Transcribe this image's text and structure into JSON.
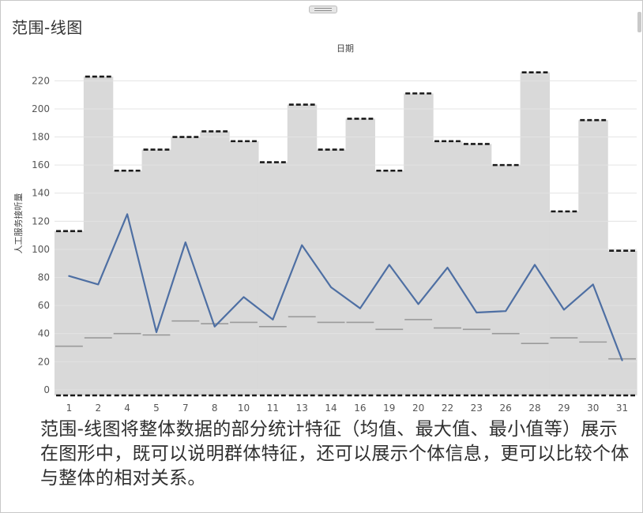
{
  "window": {
    "title": "范围-线图"
  },
  "caption": "范围-线图将整体数据的部分统计特征（均值、最大值、最小值等）展示在图形中，既可以说明群体特征，还可以展示个体信息，更可以比较个体与整体的相对关系。",
  "colors": {
    "band": "#d9d9d9",
    "line": "#4e6fa3",
    "max_cap": "#1a1a1a",
    "avg": "#9a9a9a",
    "grid": "#ececec"
  },
  "chart_data": {
    "type": "line",
    "title": "日期",
    "xlabel": "",
    "ylabel": "人工服务接听量",
    "ylim": [
      -4,
      232
    ],
    "yticks": [
      0,
      20,
      40,
      60,
      80,
      100,
      120,
      140,
      160,
      180,
      200,
      220
    ],
    "categories": [
      "1",
      "2",
      "4",
      "5",
      "7",
      "8",
      "10",
      "11",
      "13",
      "14",
      "16",
      "19",
      "20",
      "22",
      "23",
      "26",
      "28",
      "29",
      "30",
      "31"
    ],
    "series": [
      {
        "role": "value",
        "values": [
          81,
          75,
          125,
          41,
          105,
          45,
          66,
          50,
          103,
          73,
          58,
          89,
          61,
          87,
          55,
          56,
          89,
          57,
          75,
          21
        ]
      },
      {
        "role": "max",
        "values": [
          113,
          223,
          156,
          171,
          180,
          184,
          177,
          162,
          203,
          171,
          193,
          156,
          211,
          177,
          175,
          160,
          226,
          127,
          192,
          99
        ]
      },
      {
        "role": "average",
        "values": [
          31,
          37,
          40,
          39,
          49,
          47,
          48,
          45,
          52,
          48,
          48,
          43,
          50,
          44,
          43,
          40,
          33,
          37,
          34,
          22
        ]
      },
      {
        "role": "min",
        "values": [
          -4,
          -4,
          -4,
          -4,
          -4,
          -4,
          -4,
          -4,
          -4,
          -4,
          -4,
          -4,
          -4,
          -4,
          -4,
          -4,
          -4,
          -4,
          -4,
          -4
        ]
      }
    ],
    "grid": true
  }
}
